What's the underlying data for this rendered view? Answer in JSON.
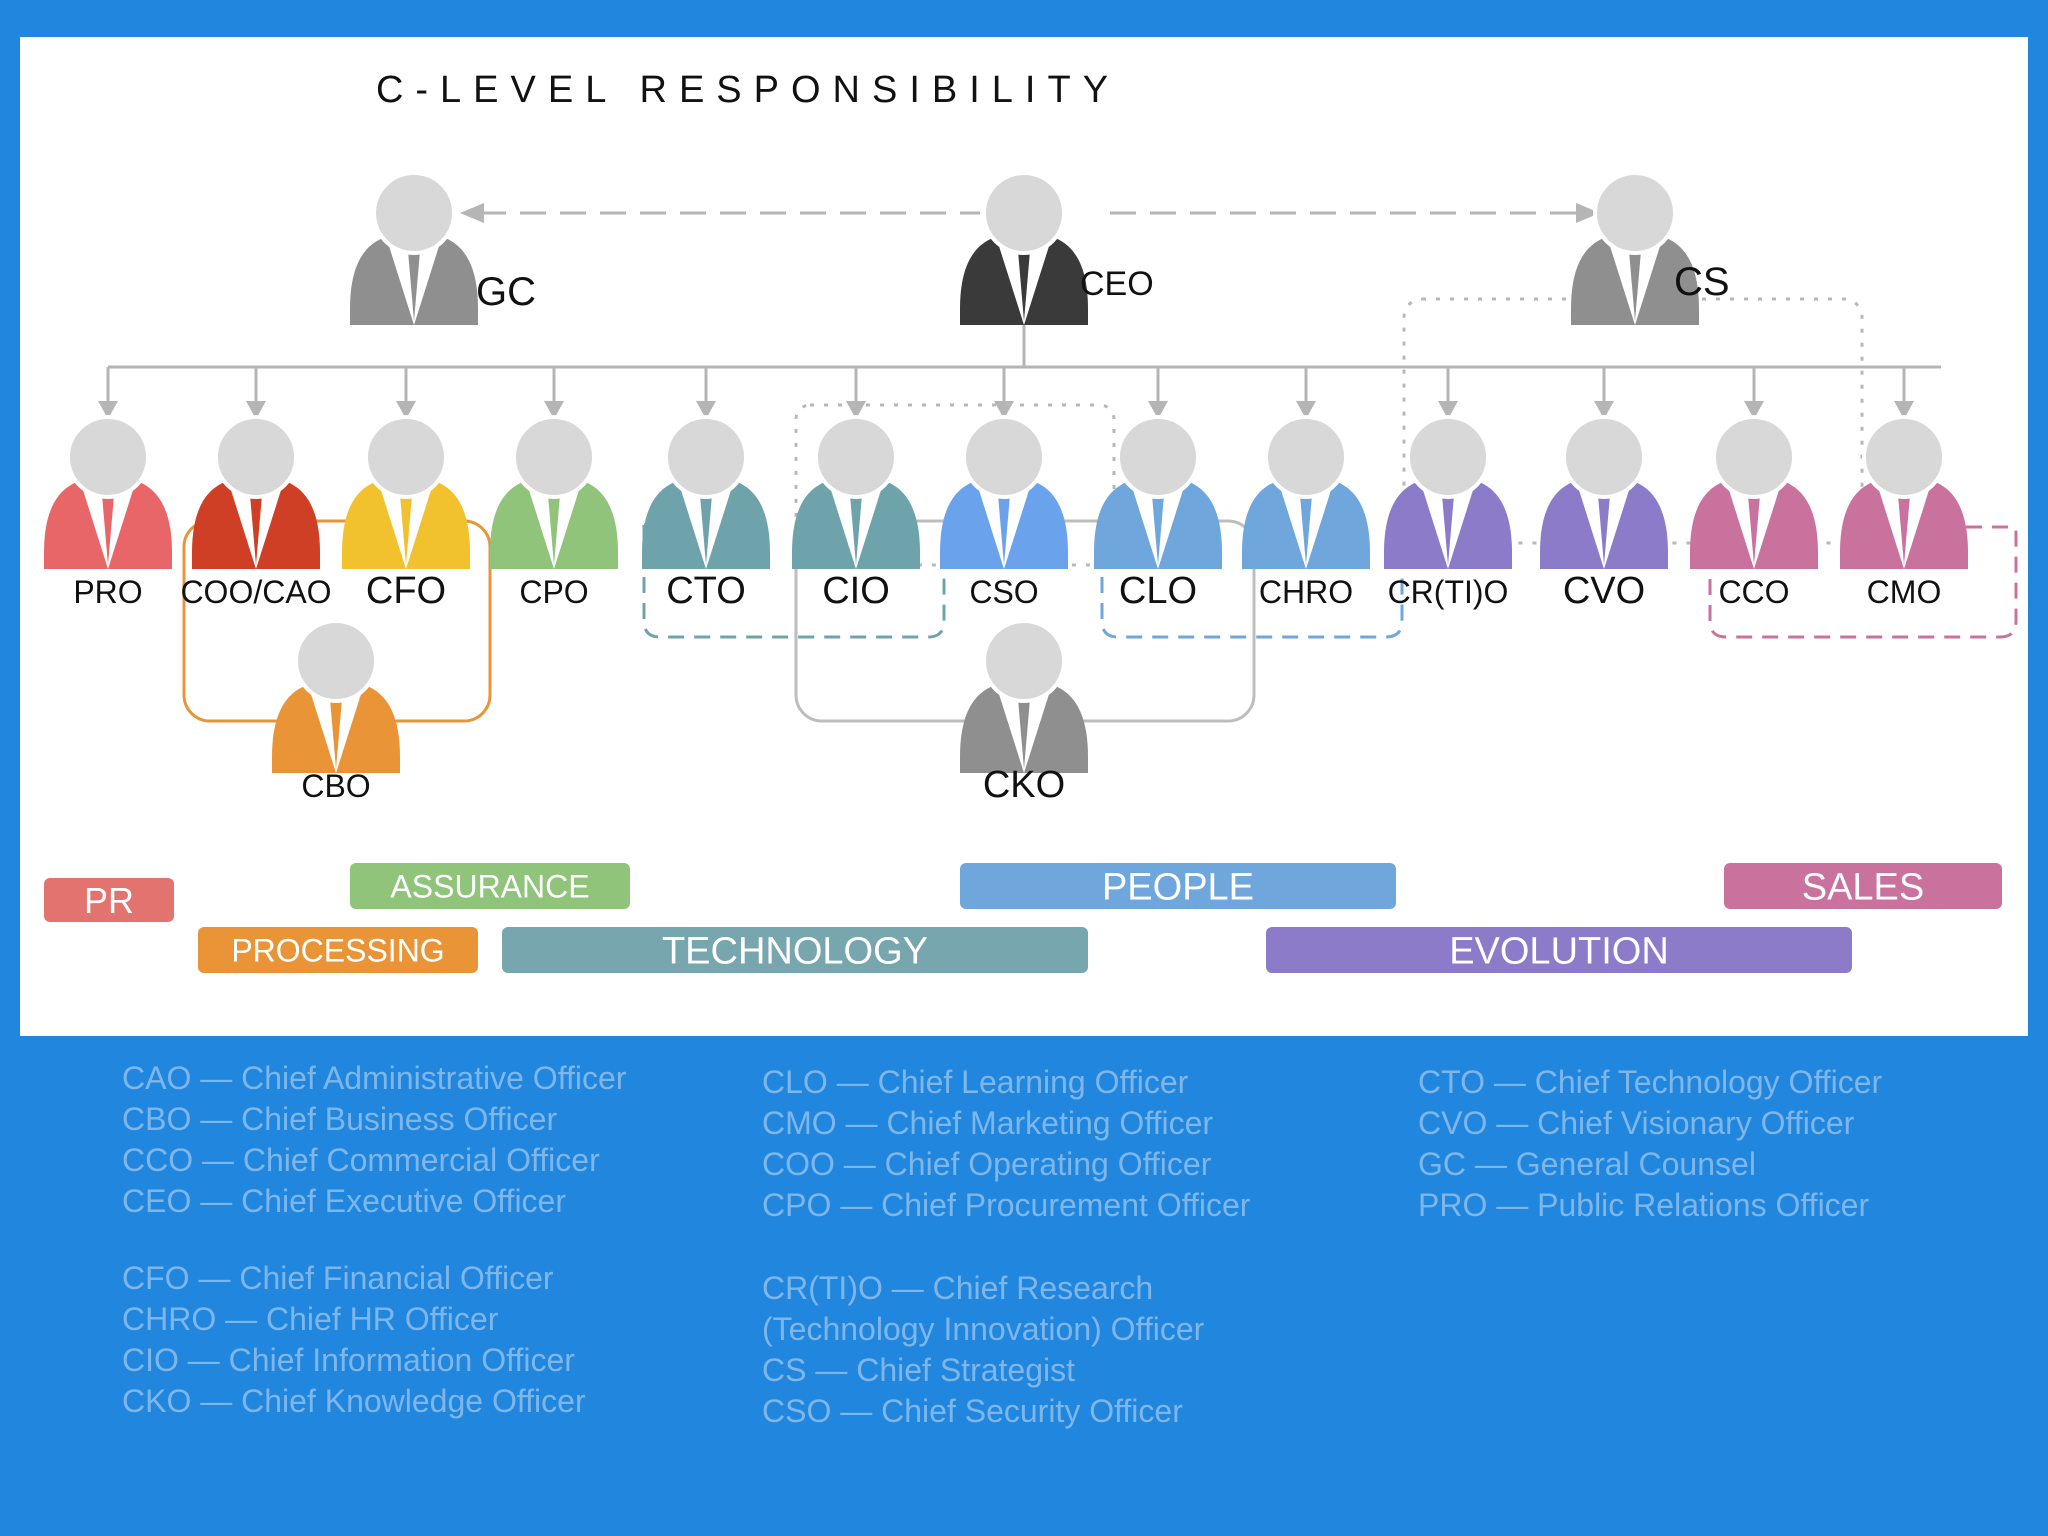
{
  "title": "C-LEVEL RESPONSIBILITY",
  "colors": {
    "background": "#2187de",
    "panel": "#ffffff",
    "head": "#d8d8d8",
    "connector": "#b5b5b5",
    "legend_text": "#7fb6ea"
  },
  "top_row": [
    {
      "id": "gc",
      "label": "GC",
      "color": "#8f8f8f"
    },
    {
      "id": "ceo",
      "label": "CEO",
      "color": "#3a3a3a"
    },
    {
      "id": "cs",
      "label": "CS",
      "color": "#8f8f8f"
    }
  ],
  "officers": [
    {
      "id": "pro",
      "label": "PRO",
      "color": "#e86568"
    },
    {
      "id": "coo",
      "label": "COO/CAO",
      "color": "#cf3f25"
    },
    {
      "id": "cfo",
      "label": "CFO",
      "color": "#f2c12e"
    },
    {
      "id": "cpo",
      "label": "CPO",
      "color": "#8fc47a"
    },
    {
      "id": "cto",
      "label": "CTO",
      "color": "#6fa3ac"
    },
    {
      "id": "cio",
      "label": "CIO",
      "color": "#6fa3ac"
    },
    {
      "id": "cso",
      "label": "CSO",
      "color": "#6aa3ec"
    },
    {
      "id": "clo",
      "label": "CLO",
      "color": "#6fa6dc"
    },
    {
      "id": "chro",
      "label": "CHRO",
      "color": "#6fa6dc"
    },
    {
      "id": "crtio",
      "label": "CR(TI)O",
      "color": "#8b7bc8"
    },
    {
      "id": "cvo",
      "label": "CVO",
      "color": "#8b7bc8"
    },
    {
      "id": "cco",
      "label": "CCO",
      "color": "#c8729d"
    },
    {
      "id": "cmo",
      "label": "CMO",
      "color": "#c8729d"
    }
  ],
  "bottom_row": [
    {
      "id": "cbo",
      "label": "CBO",
      "color": "#ea9438"
    },
    {
      "id": "cko",
      "label": "CKO",
      "color": "#8f8f8f"
    }
  ],
  "areas": [
    {
      "id": "pr",
      "label": "PR",
      "color": "#e2736e"
    },
    {
      "id": "assurance",
      "label": "ASSURANCE",
      "color": "#8fc47a"
    },
    {
      "id": "processing",
      "label": "PROCESSING",
      "color": "#ea9438"
    },
    {
      "id": "technology",
      "label": "TECHNOLOGY",
      "color": "#78a6ae"
    },
    {
      "id": "people",
      "label": "PEOPLE",
      "color": "#6fa6dc"
    },
    {
      "id": "evolution",
      "label": "EVOLUTION",
      "color": "#8b7bc8"
    },
    {
      "id": "sales",
      "label": "SALES",
      "color": "#c8729d"
    }
  ],
  "legend": [
    {
      "groups": [
        [
          "CAO — Chief Administrative Officer",
          "CBO — Chief Business Officer",
          "CCO — Chief Commercial Officer",
          "CEO — Chief Executive Officer"
        ],
        [
          "CFO — Chief Financial Officer",
          "CHRO — Chief HR Officer",
          "CIO — Chief Information Officer",
          "CKO — Chief Knowledge Officer"
        ]
      ]
    },
    {
      "groups": [
        [
          "CLO — Chief Learning Officer",
          "CMO — Chief Marketing Officer",
          "COO — Chief Operating Officer",
          "CPO — Chief Procurement Officer"
        ],
        [
          "CR(TI)O — Chief Research",
          "(Technology Innovation) Officer",
          "CS — Chief Strategist",
          "CSO — Chief Security Officer"
        ]
      ]
    },
    {
      "groups": [
        [
          "CTO — Chief Technology Officer",
          "CVO — Chief Visionary Officer",
          "GC — General Counsel",
          "PRO — Public Relations Officer"
        ]
      ]
    }
  ]
}
